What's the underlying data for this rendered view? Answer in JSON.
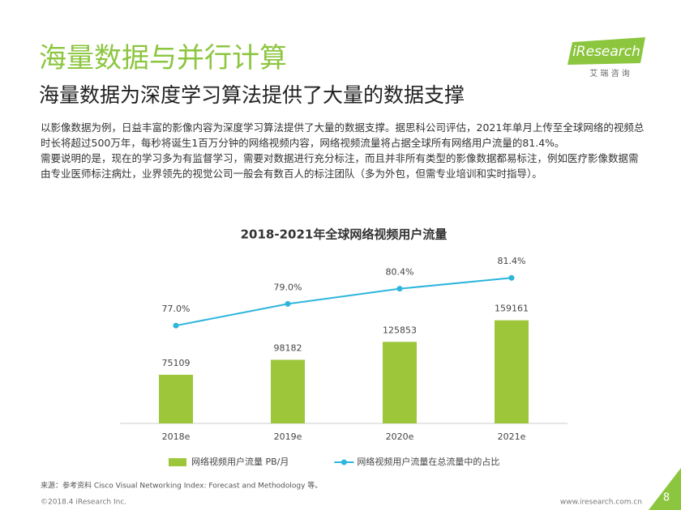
{
  "header": {
    "title": "海量数据与并行计算",
    "subtitle": "海量数据为深度学习算法提供了大量的数据支撑"
  },
  "logo": {
    "brand": "iResearch",
    "tagline": "艾 瑞 咨 询"
  },
  "body": [
    "以影像数据为例，日益丰富的影像内容为深度学习算法提供了大量的数据支撑。据思科公司评估，2021年单月上传至全球网络的视频总时长将超过500万年，每秒将诞生1百万分钟的网络视频内容，网络视频流量将占据全球所有网络用户流量的81.4%。",
    "需要说明的是，现在的学习多为有监督学习，需要对数据进行充分标注，而且并非所有类型的影像数据都易标注，例如医疗影像数据需由专业医师标注病灶，业界领先的视觉公司一般会有数百人的标注团队（多为外包，但需专业培训和实时指导）。"
  ],
  "chart_data": {
    "type": "bar",
    "title": "2018-2021年全球网络视频用户流量",
    "categories": [
      "2018e",
      "2019e",
      "2020e",
      "2021e"
    ],
    "series": [
      {
        "name": "网络视频用户流量 PB/月",
        "type": "bar",
        "color": "#9dc63b",
        "values": [
          75109,
          98182,
          125853,
          159161
        ]
      },
      {
        "name": "网络视频用户流量在总流量中的占比",
        "type": "line",
        "axis": "y2",
        "color": "#2db5dc",
        "values": [
          77.0,
          79.0,
          80.4,
          81.4
        ],
        "value_labels": [
          "77.0%",
          "79.0%",
          "80.4%",
          "81.4%"
        ]
      }
    ],
    "ylim": [
      0,
      200000
    ],
    "y2lim": [
      70,
      85
    ],
    "legend": "bottom"
  },
  "footer": {
    "source": "来源：参考资料 Cisco Visual Networking Index: Forecast and Methodology 等。",
    "copyright": "©2018.4 iResearch Inc.",
    "url": "www.iresearch.com.cn",
    "page": "8"
  }
}
